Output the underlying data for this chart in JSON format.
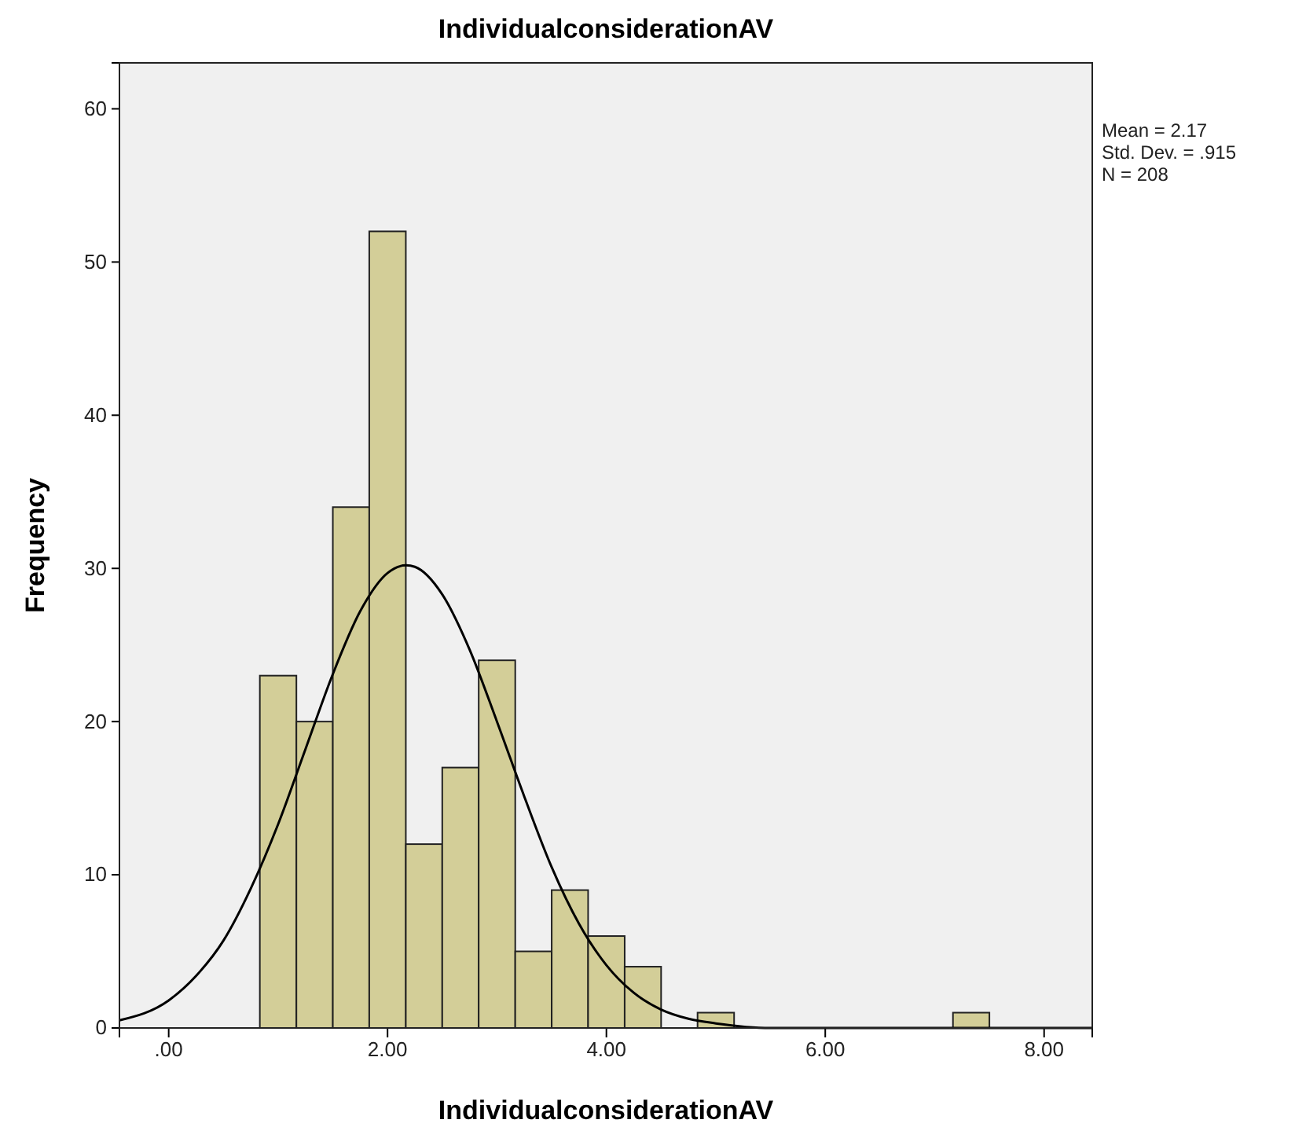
{
  "chart_data": {
    "type": "histogram",
    "title": "IndividualconsiderationAV",
    "xlabel": "IndividualconsiderationAV",
    "ylabel": "Frequency",
    "bins": [
      0.833,
      1.167,
      1.5,
      1.833,
      2.167,
      2.5,
      2.833,
      3.167,
      3.5,
      3.833,
      4.167,
      4.5,
      4.833,
      5.167,
      5.5,
      5.833,
      6.167,
      6.5,
      6.833,
      7.167,
      7.5
    ],
    "values": [
      23,
      20,
      34,
      52,
      12,
      17,
      24,
      5,
      9,
      6,
      4,
      0,
      1,
      0,
      0,
      0,
      0,
      0,
      0,
      1
    ],
    "color": "#d3ce98",
    "series": [
      {
        "type": "line",
        "color": "#000000",
        "x": [
          -0.45,
          0,
          0.25,
          0.5,
          0.75,
          1,
          1.25,
          1.5,
          1.75,
          2,
          2.17,
          2.25,
          2.5,
          2.75,
          3,
          3.25,
          3.5,
          3.75,
          4,
          4.25,
          4.5,
          4.75,
          5,
          5.5,
          6,
          7,
          8.44
        ],
        "values": [
          0.5,
          1.8,
          3.4,
          5.7,
          9.1,
          13.3,
          18.2,
          23.1,
          27.2,
          29.7,
          30.2,
          30.1,
          28.3,
          24.7,
          20.0,
          15.1,
          10.5,
          6.8,
          4.1,
          2.3,
          1.2,
          0.6,
          0.3,
          0,
          0,
          0,
          0
        ]
      }
    ],
    "xlim": [
      -0.45,
      8.44
    ],
    "xticks": [
      {
        "value": 0,
        "label": ".00"
      },
      {
        "value": 2,
        "label": "2.00"
      },
      {
        "value": 4,
        "label": "4.00"
      },
      {
        "value": 6,
        "label": "6.00"
      },
      {
        "value": 8,
        "label": "8.00"
      }
    ],
    "ylim": [
      0,
      63
    ],
    "yticks": [
      0,
      10,
      20,
      30,
      40,
      50,
      60
    ],
    "grid": false,
    "annotations": [
      "Mean = 2.17",
      "Std. Dev. = .915",
      "N = 208"
    ]
  }
}
